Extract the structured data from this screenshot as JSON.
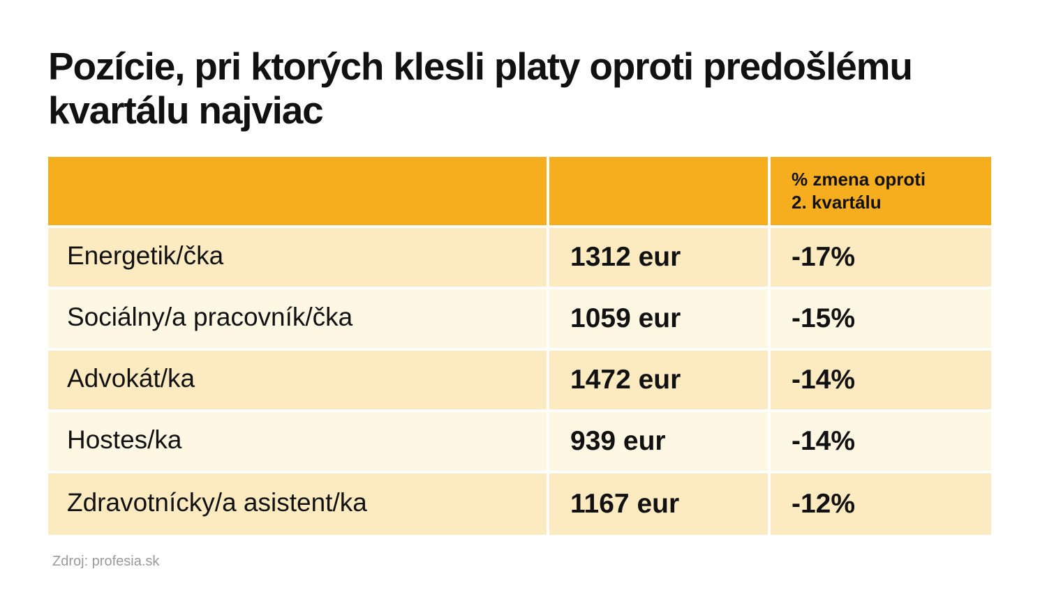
{
  "title": "Pozície, pri ktorých klesli platy oproti predošlému kvartálu najviac",
  "chart_data": {
    "type": "table",
    "columns": [
      "",
      "",
      "% zmena oproti\n2. kvartálu"
    ],
    "rows": [
      {
        "position": "Energetik/čka",
        "salary": "1312 eur",
        "change": "-17%"
      },
      {
        "position": "Sociálny/a pracovník/čka",
        "salary": "1059 eur",
        "change": "-15%"
      },
      {
        "position": "Advokát/ka",
        "salary": "1472 eur",
        "change": "-14%"
      },
      {
        "position": "Hostes/ka",
        "salary": "939 eur",
        "change": "-14%"
      },
      {
        "position": "Zdravotnícky/a asistent/ka",
        "salary": "1167 eur",
        "change": "-12%"
      }
    ],
    "header_color": "#f7ae1e",
    "row_colors": [
      "#fcebc1",
      "#fef7e3"
    ]
  },
  "source": "Zdroj: profesia.sk"
}
